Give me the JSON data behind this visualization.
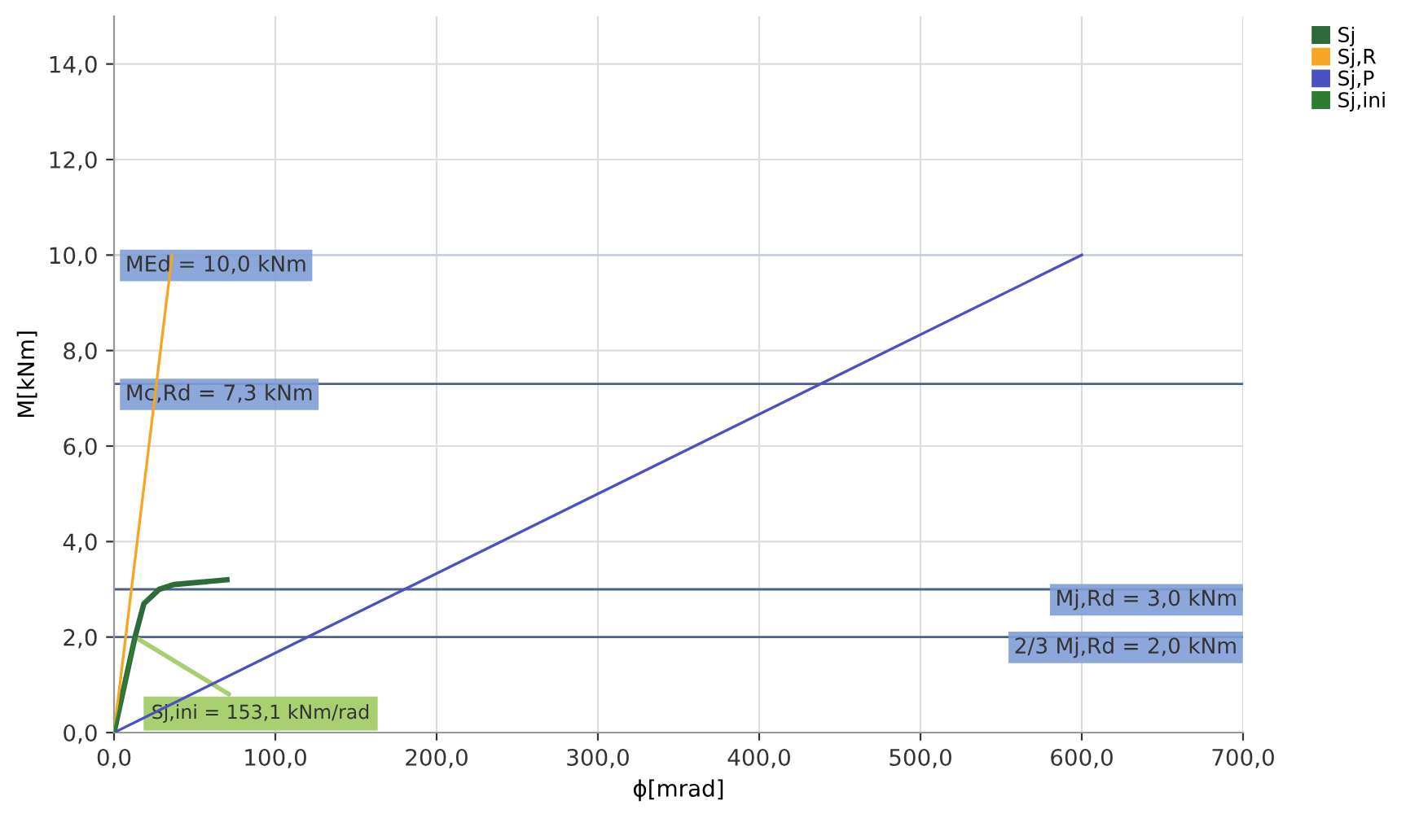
{
  "chart_data": {
    "type": "line",
    "xlabel": "ϕ[mrad]",
    "ylabel": "M[kNm]",
    "xlim": [
      0,
      700
    ],
    "ylim": [
      0,
      15
    ],
    "xticks": [
      {
        "value": 0,
        "label": "0,0"
      },
      {
        "value": 100,
        "label": "100,0"
      },
      {
        "value": 200,
        "label": "200,0"
      },
      {
        "value": 300,
        "label": "300,0"
      },
      {
        "value": 400,
        "label": "400,0"
      },
      {
        "value": 500,
        "label": "500,0"
      },
      {
        "value": 600,
        "label": "600,0"
      },
      {
        "value": 700,
        "label": "700,0"
      }
    ],
    "yticks": [
      {
        "value": 0,
        "label": "0,0"
      },
      {
        "value": 2,
        "label": "2,0"
      },
      {
        "value": 4,
        "label": "4,0"
      },
      {
        "value": 6,
        "label": "6,0"
      },
      {
        "value": 8,
        "label": "8,0"
      },
      {
        "value": 10,
        "label": "10,0"
      },
      {
        "value": 12,
        "label": "12,0"
      },
      {
        "value": 14,
        "label": "14,0"
      }
    ],
    "grid": true,
    "legend": "top right",
    "marker": "none",
    "series": [
      {
        "name": "Sj",
        "color": "#2e6b3a",
        "x": [
          0,
          13,
          18.5,
          28,
          37,
          70
        ],
        "values": [
          0,
          2.0,
          2.7,
          3.0,
          3.1,
          3.2
        ]
      },
      {
        "name": "Sj,R",
        "color": "#f5a623",
        "x": [
          0,
          36
        ],
        "values": [
          0,
          10
        ]
      },
      {
        "name": "Sj,P",
        "color": "#4b52c0",
        "x": [
          0,
          600
        ],
        "values": [
          0,
          10
        ]
      },
      {
        "name": "Sj,ini",
        "color": "#2e7d32",
        "x": [
          0,
          13.1
        ],
        "values": [
          0,
          2.0
        ]
      }
    ],
    "ref_lines": [
      {
        "axis": "y",
        "value": 10,
        "label": "MEd = 10,0 kNm",
        "color": "#c8d0dc"
      },
      {
        "axis": "y",
        "value": 7.3,
        "label": "Mc,Rd = 7,3 kNm",
        "color": "#4a6290"
      },
      {
        "axis": "y",
        "value": 3.0,
        "label": "Mj,Rd = 3,0 kNm",
        "color": "#4a6290"
      },
      {
        "axis": "y",
        "value": 2.0,
        "label": "2/3 Mj,Rd = 2,0 kNm",
        "color": "#4a6290"
      }
    ],
    "annotations": [
      {
        "text": "Sj,ini = 153,1 kNm/rad",
        "x": 13.1,
        "y": 2.0
      }
    ]
  }
}
